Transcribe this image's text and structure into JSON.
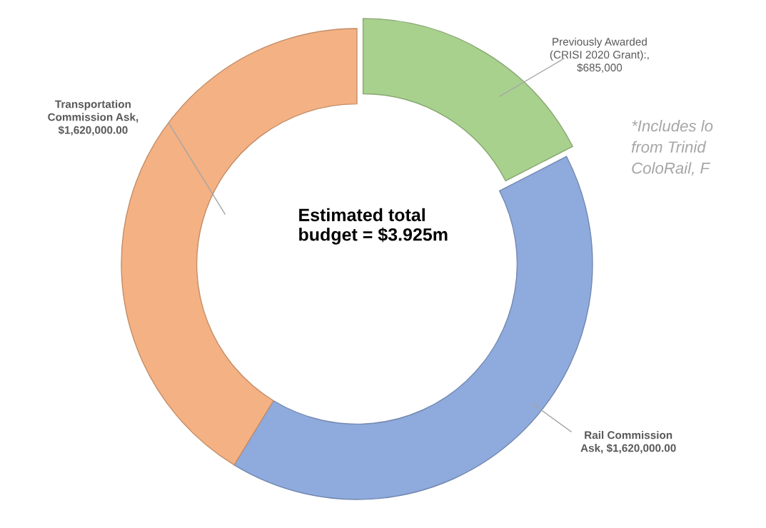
{
  "chart_data": {
    "type": "donut",
    "categories": [
      "Previously Awarded\n(CRISI 2020 Grant):,\n$685,000",
      "Rail Commission\nAsk, $1,620,000.00",
      "Transportation\nCommission Ask,\n$1,620,000.00"
    ],
    "values": [
      685000,
      1620000,
      1620000
    ],
    "colors": [
      "#a9d18e",
      "#8faadc",
      "#f4b183"
    ],
    "annotations": [
      "Estimated total\nbudget = $3.925m",
      "*Includes lo\nfrom Trinid\nColoRail, F"
    ],
    "legend": false
  }
}
